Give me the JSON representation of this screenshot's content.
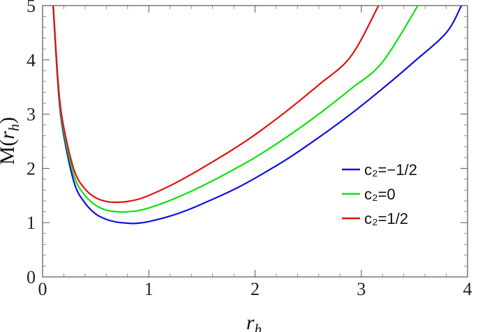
{
  "chart_data": {
    "type": "line",
    "title": "",
    "xlabel": "r",
    "xlabel_sub": "h",
    "ylabel_main": "M(",
    "ylabel_var": "r",
    "ylabel_sub": "h",
    "ylabel_close": ")",
    "xlim": [
      0,
      4
    ],
    "ylim": [
      0,
      5
    ],
    "xticks": [
      0,
      1,
      2,
      3,
      4
    ],
    "yticks": [
      0,
      1,
      2,
      3,
      4,
      5
    ],
    "xtick_labels": [
      "0",
      "1",
      "2",
      "3",
      "4"
    ],
    "ytick_labels": [
      "0",
      "1",
      "2",
      "3",
      "4",
      "5"
    ],
    "grid": false,
    "legend_position": "right",
    "series": [
      {
        "name": "c₂=−1/2",
        "color": "#1010e0",
        "x": [
          0.1,
          0.15,
          0.2,
          0.3,
          0.4,
          0.5,
          0.6,
          0.7,
          0.8,
          0.85,
          0.9,
          1.0,
          1.2,
          1.4,
          1.6,
          1.8,
          2.0,
          2.3,
          2.6,
          2.9,
          3.2,
          3.5,
          3.8,
          3.94
        ],
        "y": [
          5.0,
          3.4,
          2.6,
          1.72,
          1.36,
          1.16,
          1.06,
          1.01,
          0.99,
          0.985,
          0.99,
          1.02,
          1.12,
          1.26,
          1.43,
          1.61,
          1.82,
          2.17,
          2.57,
          3.0,
          3.47,
          3.97,
          4.5,
          4.99
        ]
      },
      {
        "name": "c₂=0",
        "color": "#10e010",
        "x": [
          0.1,
          0.15,
          0.2,
          0.3,
          0.4,
          0.5,
          0.6,
          0.7,
          0.75,
          0.8,
          0.9,
          1.0,
          1.2,
          1.4,
          1.6,
          1.8,
          2.0,
          2.3,
          2.6,
          2.9,
          3.2,
          3.53
        ],
        "y": [
          5.0,
          3.45,
          2.68,
          1.84,
          1.5,
          1.32,
          1.23,
          1.2,
          1.195,
          1.2,
          1.22,
          1.27,
          1.41,
          1.58,
          1.77,
          1.98,
          2.2,
          2.58,
          3.0,
          3.46,
          3.96,
          4.99
        ]
      },
      {
        "name": "c₂=1/2",
        "color": "#e01010",
        "x": [
          0.1,
          0.15,
          0.2,
          0.3,
          0.4,
          0.5,
          0.6,
          0.68,
          0.75,
          0.8,
          0.9,
          1.0,
          1.2,
          1.4,
          1.6,
          1.8,
          2.0,
          2.3,
          2.6,
          2.9,
          3.16
        ],
        "y": [
          5.0,
          3.5,
          2.75,
          1.95,
          1.62,
          1.46,
          1.39,
          1.375,
          1.38,
          1.39,
          1.43,
          1.5,
          1.68,
          1.89,
          2.12,
          2.36,
          2.62,
          3.06,
          3.54,
          4.06,
          4.99
        ]
      }
    ]
  }
}
